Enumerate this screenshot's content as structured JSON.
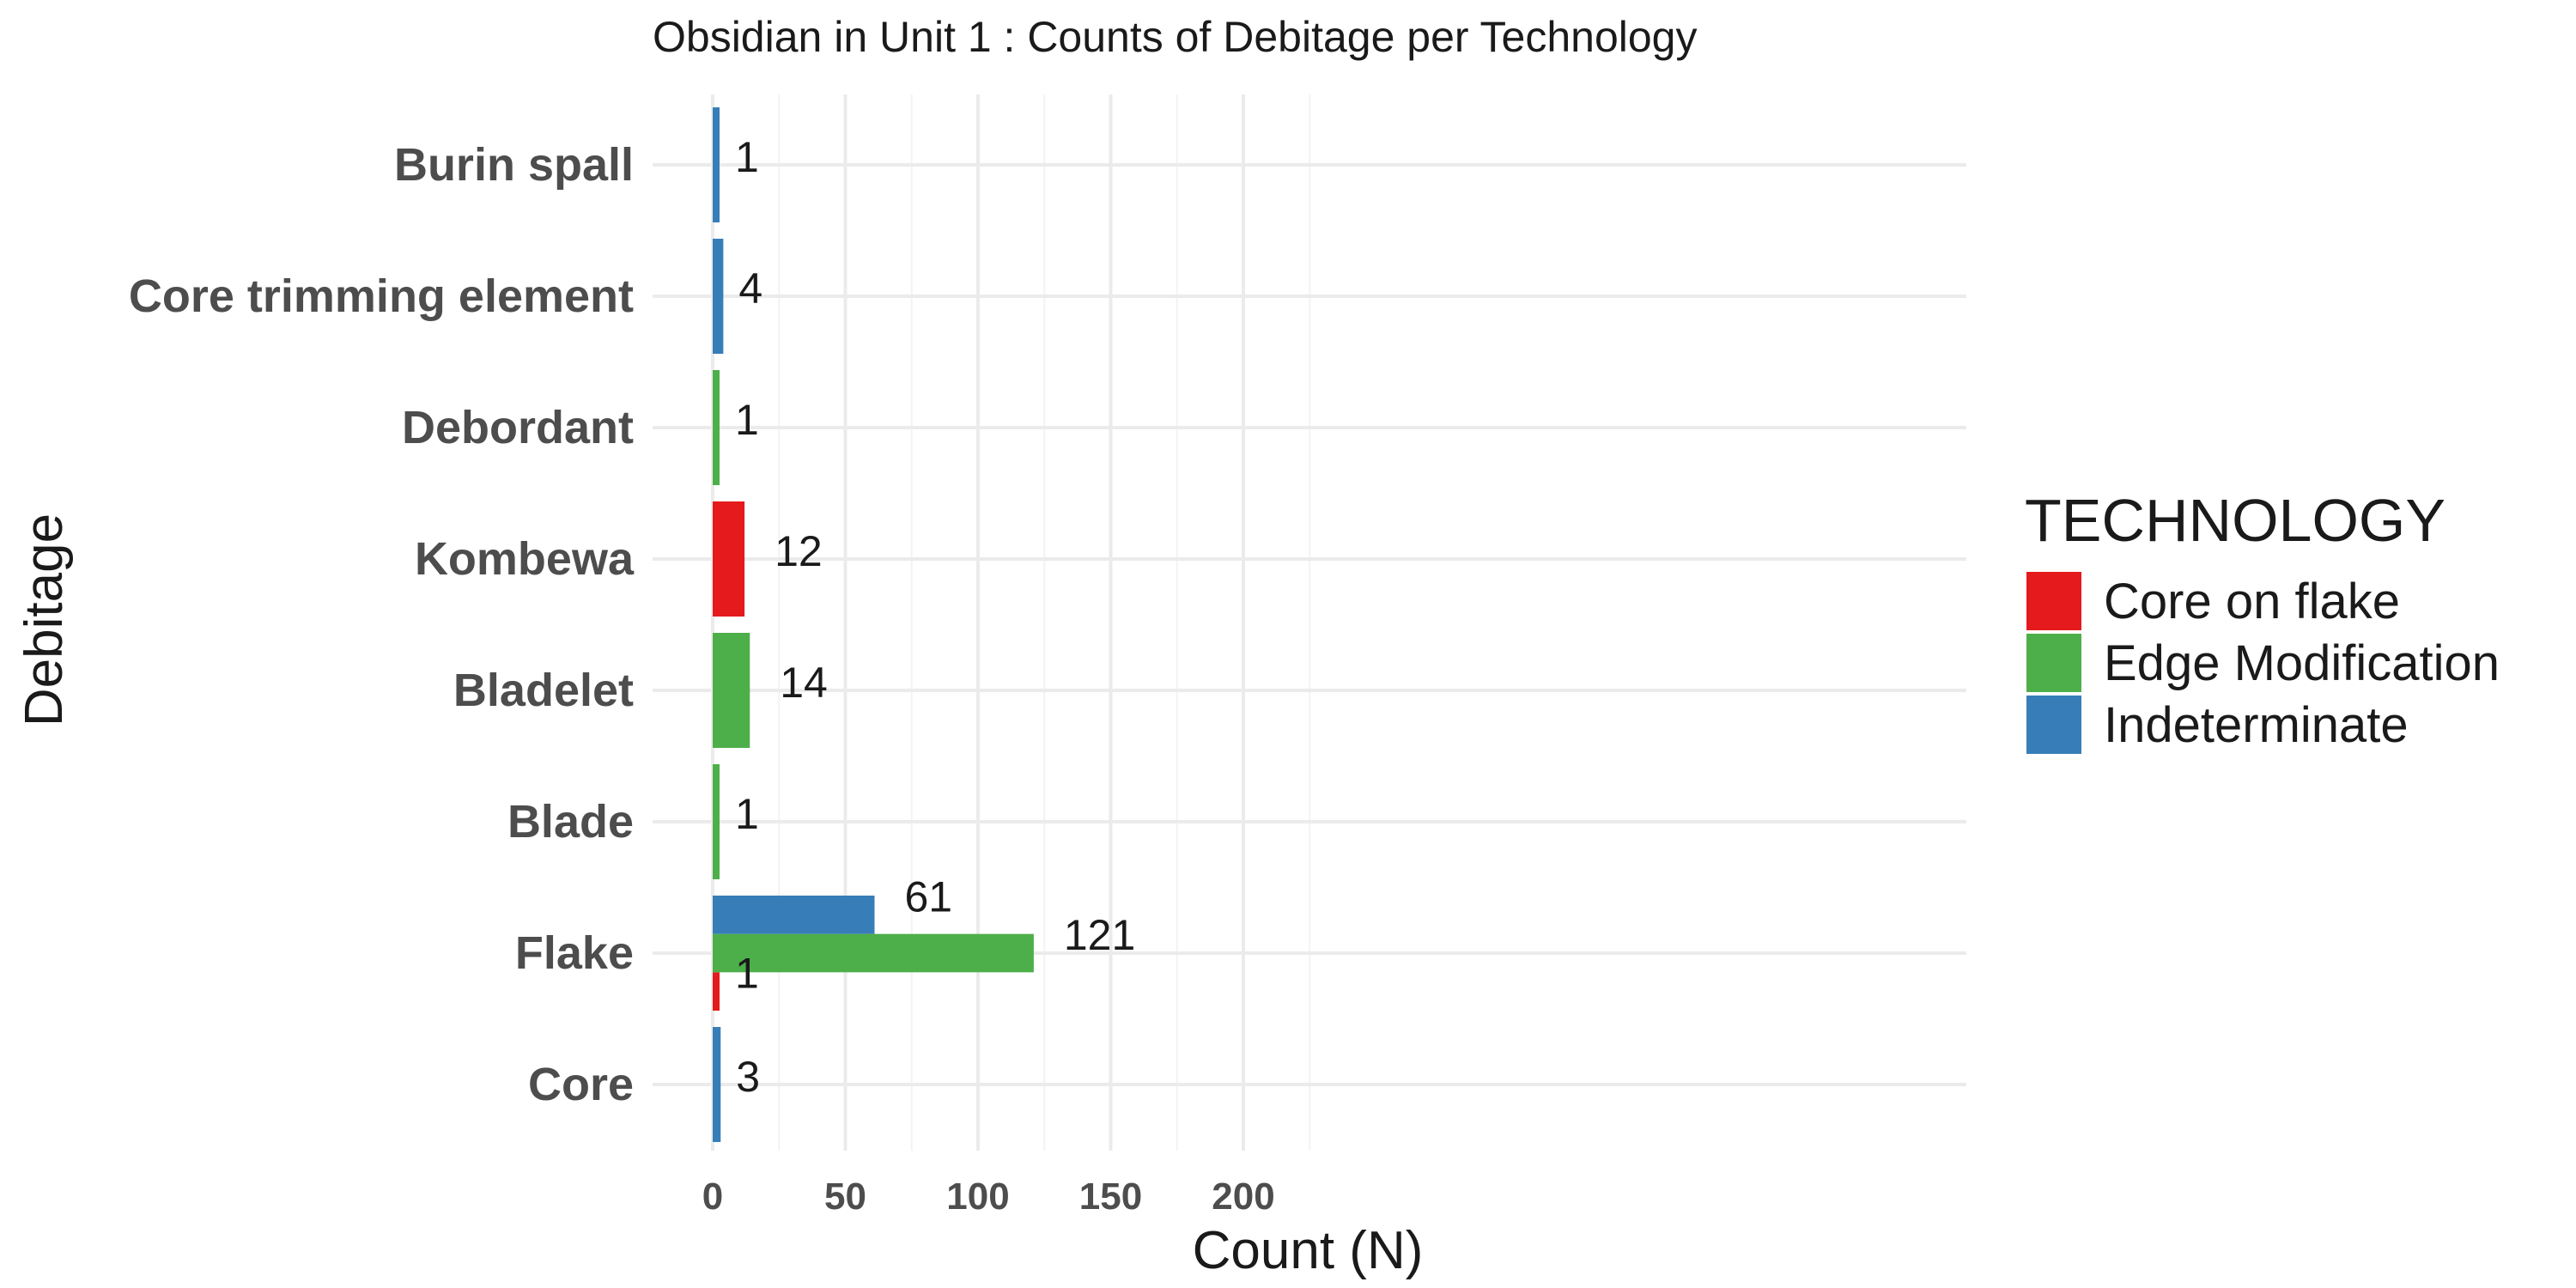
{
  "chart_data": {
    "type": "bar",
    "orientation": "horizontal",
    "title": "Obsidian in Unit 1 : Counts of Debitage per Technology",
    "xlabel": "Count (N)",
    "ylabel": "Debitage",
    "xlim": [
      0,
      230
    ],
    "xticks": [
      0,
      50,
      100,
      150,
      200
    ],
    "grid": true,
    "legend_position": "right",
    "legend_title": "TECHNOLOGY",
    "categories": [
      "Core",
      "Flake",
      "Blade",
      "Bladelet",
      "Kombewa",
      "Debordant",
      "Core trimming element",
      "Burin spall"
    ],
    "series": [
      {
        "name": "Core on flake",
        "color": "#E41A1C",
        "values": [
          null,
          1,
          null,
          null,
          12,
          null,
          null,
          null
        ]
      },
      {
        "name": "Edge Modification",
        "color": "#4DAF4A",
        "values": [
          null,
          121,
          1,
          14,
          null,
          1,
          null,
          null
        ]
      },
      {
        "name": "Indeterminate",
        "color": "#377EB8",
        "values": [
          3,
          61,
          null,
          null,
          null,
          null,
          4,
          1
        ]
      }
    ]
  }
}
